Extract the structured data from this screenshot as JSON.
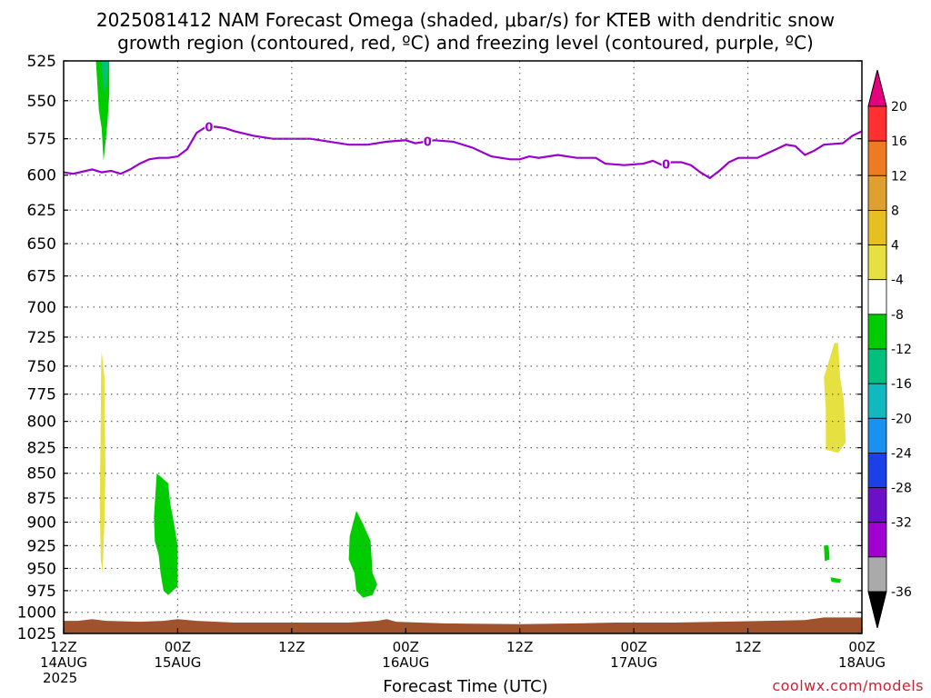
{
  "title_line_1": "2025081412 NAM Forecast Omega (shaded, μbar/s) for KTEB with dendritic snow",
  "title_line_2": "growth region (contoured, red, ºC) and freezing level (contoured, purple, ºC)",
  "credit": "coolwx.com/models",
  "colors": {
    "freezing_level": "#9900cc",
    "terrain": "#a0522d",
    "gridline": "#666666"
  },
  "chart_data": {
    "type": "heatmap",
    "xlabel": "Forecast Time (UTC)",
    "xlim_hours": [
      0,
      84
    ],
    "ylim_hpa": [
      1025,
      525
    ],
    "y_scale": "log-pressure",
    "grid": true,
    "y_ticks": [
      525,
      550,
      575,
      600,
      625,
      650,
      675,
      700,
      725,
      750,
      775,
      800,
      825,
      850,
      875,
      900,
      925,
      950,
      975,
      1000,
      1025
    ],
    "x_ticks": [
      {
        "hour": 0,
        "label": "12Z",
        "date": "14AUG",
        "year": "2025"
      },
      {
        "hour": 12,
        "label": "00Z",
        "date": "15AUG",
        "year": ""
      },
      {
        "hour": 24,
        "label": "12Z",
        "date": "",
        "year": ""
      },
      {
        "hour": 36,
        "label": "00Z",
        "date": "16AUG",
        "year": ""
      },
      {
        "hour": 48,
        "label": "12Z",
        "date": "",
        "year": ""
      },
      {
        "hour": 60,
        "label": "00Z",
        "date": "17AUG",
        "year": ""
      },
      {
        "hour": 72,
        "label": "12Z",
        "date": "",
        "year": ""
      },
      {
        "hour": 84,
        "label": "00Z",
        "date": "18AUG",
        "year": ""
      }
    ],
    "colorbar": {
      "labels": [
        "20",
        "16",
        "12",
        "8",
        "4",
        "-4",
        "-8",
        "-12",
        "-16",
        "-20",
        "-24",
        "-28",
        "-32",
        "-36"
      ],
      "colors": [
        "#ff3030",
        "#f07a20",
        "#e0a030",
        "#e6c020",
        "#e6e040",
        "#ffffff",
        "#00cc00",
        "#00c080",
        "#10b8c0",
        "#1a90f0",
        "#1a40e8",
        "#6a10c8",
        "#a000d0",
        "#aaaaaa"
      ],
      "top_arrow_color": "#e6007e",
      "bottom_arrow_color": "#000000"
    },
    "freezing_level": {
      "label": "0",
      "label_hours": [
        15.3,
        38.3,
        63.4
      ],
      "points": [
        [
          0,
          598
        ],
        [
          1,
          599
        ],
        [
          3,
          596
        ],
        [
          4,
          598
        ],
        [
          5,
          597
        ],
        [
          6,
          599
        ],
        [
          7,
          596
        ],
        [
          8,
          592
        ],
        [
          9,
          589
        ],
        [
          10,
          588
        ],
        [
          11,
          588
        ],
        [
          12,
          587
        ],
        [
          13,
          582
        ],
        [
          14,
          571
        ],
        [
          15,
          567
        ],
        [
          16,
          567
        ],
        [
          17,
          568
        ],
        [
          18,
          570
        ],
        [
          20,
          573
        ],
        [
          22,
          575
        ],
        [
          26,
          575
        ],
        [
          28,
          577
        ],
        [
          30,
          579
        ],
        [
          32,
          579
        ],
        [
          34,
          577
        ],
        [
          36,
          576
        ],
        [
          37,
          578
        ],
        [
          39,
          576
        ],
        [
          41,
          577
        ],
        [
          43,
          581
        ],
        [
          45,
          587
        ],
        [
          47,
          589
        ],
        [
          48,
          589
        ],
        [
          49,
          587
        ],
        [
          50,
          588
        ],
        [
          52,
          586
        ],
        [
          54,
          588
        ],
        [
          56,
          588
        ],
        [
          57,
          592
        ],
        [
          59,
          593
        ],
        [
          61,
          592
        ],
        [
          62,
          590
        ],
        [
          63,
          593
        ],
        [
          64,
          591
        ],
        [
          65,
          591
        ],
        [
          66,
          593
        ],
        [
          67,
          598
        ],
        [
          68,
          602
        ],
        [
          69,
          597
        ],
        [
          70,
          591
        ],
        [
          71,
          588
        ],
        [
          73,
          588
        ],
        [
          74,
          585
        ],
        [
          75,
          582
        ],
        [
          76,
          579
        ],
        [
          77,
          580
        ],
        [
          78,
          586
        ],
        [
          79,
          583
        ],
        [
          80,
          579
        ],
        [
          82,
          578
        ],
        [
          83,
          573
        ],
        [
          84,
          570
        ]
      ]
    },
    "terrain_top_hpa": [
      [
        0,
        1010
      ],
      [
        1.5,
        1010
      ],
      [
        3,
        1008
      ],
      [
        4.5,
        1010
      ],
      [
        8,
        1011
      ],
      [
        10.5,
        1010
      ],
      [
        12,
        1008
      ],
      [
        14,
        1010
      ],
      [
        18,
        1012
      ],
      [
        24,
        1012
      ],
      [
        30,
        1012
      ],
      [
        33,
        1010
      ],
      [
        34,
        1008
      ],
      [
        35,
        1011
      ],
      [
        40,
        1013
      ],
      [
        48,
        1014
      ],
      [
        54,
        1013
      ],
      [
        58,
        1012
      ],
      [
        64,
        1012
      ],
      [
        69,
        1011
      ],
      [
        74,
        1010
      ],
      [
        78,
        1009
      ],
      [
        80,
        1006
      ],
      [
        82,
        1006
      ],
      [
        84,
        1006
      ]
    ],
    "omega_regions": [
      {
        "value": -8,
        "color": "#00cc00",
        "points": [
          [
            3.4,
            525
          ],
          [
            4.8,
            525
          ],
          [
            4.8,
            546
          ],
          [
            4.6,
            565
          ],
          [
            4.4,
            578
          ],
          [
            4.2,
            590
          ],
          [
            4.0,
            568
          ],
          [
            3.7,
            556
          ],
          [
            3.6,
            545
          ],
          [
            3.5,
            535
          ]
        ]
      },
      {
        "value": -12,
        "color": "#00c080",
        "points": [
          [
            4.0,
            525
          ],
          [
            4.7,
            525
          ],
          [
            4.6,
            535
          ],
          [
            4.3,
            545
          ],
          [
            4.1,
            536
          ]
        ]
      },
      {
        "value": 4,
        "color": "#e6e040",
        "points": [
          [
            4.0,
            737
          ],
          [
            4.3,
            760
          ],
          [
            4.4,
            850
          ],
          [
            4.3,
            900
          ],
          [
            4.1,
            955
          ],
          [
            3.9,
            940
          ],
          [
            3.8,
            880
          ],
          [
            3.9,
            800
          ],
          [
            3.95,
            745
          ]
        ]
      },
      {
        "value": -8,
        "color": "#00cc00",
        "points": [
          [
            9.8,
            850
          ],
          [
            11.0,
            860
          ],
          [
            11.2,
            880
          ],
          [
            11.5,
            895
          ],
          [
            12.0,
            925
          ],
          [
            12.0,
            970
          ],
          [
            11.0,
            980
          ],
          [
            10.5,
            975
          ],
          [
            10.2,
            955
          ],
          [
            10.0,
            935
          ],
          [
            9.6,
            920
          ],
          [
            9.5,
            895
          ]
        ]
      },
      {
        "value": -8,
        "color": "#00cc00",
        "points": [
          [
            30.8,
            888
          ],
          [
            31.5,
            902
          ],
          [
            32.3,
            920
          ],
          [
            32.5,
            955
          ],
          [
            33.0,
            968
          ],
          [
            32.5,
            980
          ],
          [
            31.5,
            983
          ],
          [
            30.8,
            975
          ],
          [
            30.6,
            955
          ],
          [
            30.0,
            940
          ],
          [
            30.1,
            915
          ]
        ]
      },
      {
        "value": 4,
        "color": "#e6e040",
        "points": [
          [
            81.1,
            730
          ],
          [
            81.5,
            730
          ],
          [
            81.7,
            760
          ],
          [
            82.1,
            780
          ],
          [
            82.3,
            820
          ],
          [
            81.5,
            830
          ],
          [
            80.2,
            827
          ],
          [
            80.2,
            790
          ],
          [
            80.0,
            760
          ]
        ]
      },
      {
        "value": -8,
        "color": "#00cc00",
        "points": [
          [
            80.0,
            925
          ],
          [
            80.5,
            925
          ],
          [
            80.6,
            940
          ],
          [
            80.1,
            942
          ]
        ]
      },
      {
        "value": -8,
        "color": "#00cc00",
        "points": [
          [
            80.7,
            960
          ],
          [
            81.8,
            962
          ],
          [
            81.7,
            966
          ],
          [
            80.8,
            965
          ]
        ]
      }
    ]
  }
}
